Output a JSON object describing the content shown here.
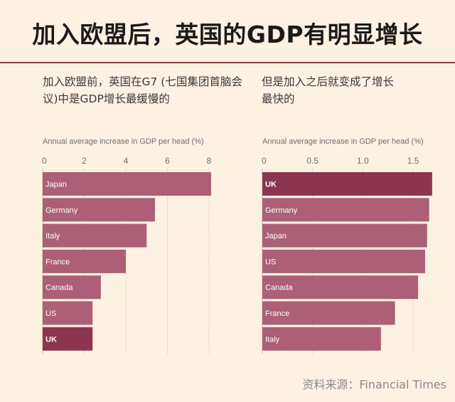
{
  "title": "加入欧盟后，英国的GDP有明显增长",
  "subtitle_left": "加入欧盟前，英国在G7 (七国集团首脑会议)中是GDP增长最缓慢的",
  "subtitle_right": "但是加入之后就变成了增长最快的",
  "source": "资料来源：Financial Times",
  "colors": {
    "bar": "#ac5f76",
    "highlight": "#8c3550",
    "grid": "#c9b6a8",
    "axis_text": "#6e6e6e",
    "background": "#fdf1e2"
  },
  "chart_data": [
    {
      "type": "bar",
      "orientation": "horizontal",
      "title": "Annual average increase in GDP per head (%)",
      "categories": [
        "Japan",
        "Germany",
        "Italy",
        "France",
        "Canada",
        "US",
        "UK"
      ],
      "values": [
        8.1,
        5.4,
        5.0,
        4.0,
        2.8,
        2.4,
        2.4
      ],
      "highlight": "UK",
      "xlim": [
        0,
        8
      ],
      "xticks": [
        0,
        2,
        4,
        6,
        8
      ],
      "xtick_labels": [
        "0",
        "2",
        "4",
        "6",
        "8"
      ]
    },
    {
      "type": "bar",
      "orientation": "horizontal",
      "title": "Annual average increase in GDP per head (%)",
      "categories": [
        "UK",
        "Germany",
        "Japan",
        "US",
        "Canada",
        "France",
        "Italy"
      ],
      "values": [
        1.69,
        1.66,
        1.64,
        1.62,
        1.55,
        1.32,
        1.18
      ],
      "highlight": "UK",
      "xlim": [
        0,
        1.5
      ],
      "xticks": [
        0,
        0.5,
        1.0,
        1.5
      ],
      "xtick_labels": [
        "0",
        "0.5",
        "1.0",
        "1.5"
      ]
    }
  ]
}
